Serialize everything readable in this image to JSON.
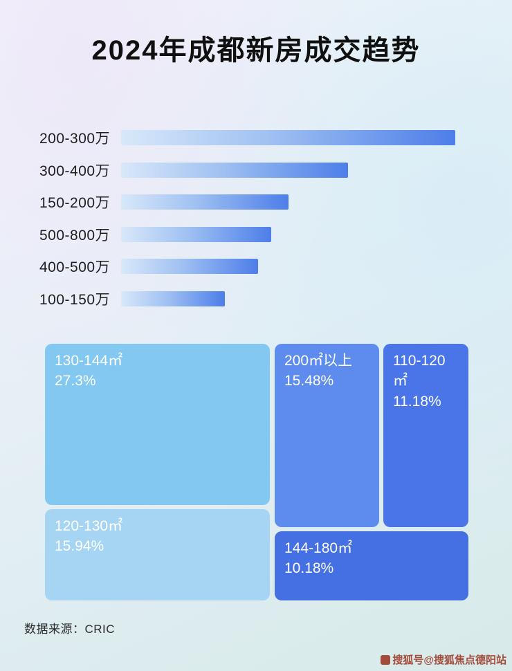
{
  "page": {
    "title": "2024年成都新房成交趋势",
    "source": "数据来源：CRIC",
    "watermark": "搜狐号@搜狐焦点德阳站"
  },
  "chart_data": [
    {
      "type": "bar",
      "orientation": "horizontal",
      "categories": [
        "200-300万",
        "300-400万",
        "150-200万",
        "500-800万",
        "400-500万",
        "100-150万"
      ],
      "values": [
        100,
        68,
        50,
        45,
        41,
        31
      ],
      "value_note": "relative bar length, % of longest bar (no numeric labels shown in image)",
      "bar_gradient": [
        "#d8e8f9",
        "#4d7ee9"
      ],
      "grid": false,
      "legend": false
    },
    {
      "type": "treemap",
      "items": [
        {
          "label": "130-144㎡",
          "value": 27.3,
          "display": "27.3%",
          "color": "#82c8f0"
        },
        {
          "label": "200㎡以上",
          "value": 15.48,
          "display": "15.48%",
          "color": "#5e8cee"
        },
        {
          "label": "110-120㎡",
          "value": 11.18,
          "display": "11.18%",
          "color": "#4a75e8"
        },
        {
          "label": "120-130㎡",
          "value": 15.94,
          "display": "15.94%",
          "color": "#a6d5f3"
        },
        {
          "label": "144-180㎡",
          "value": 10.18,
          "display": "10.18%",
          "color": "#4470e4"
        }
      ],
      "legend": false
    }
  ]
}
